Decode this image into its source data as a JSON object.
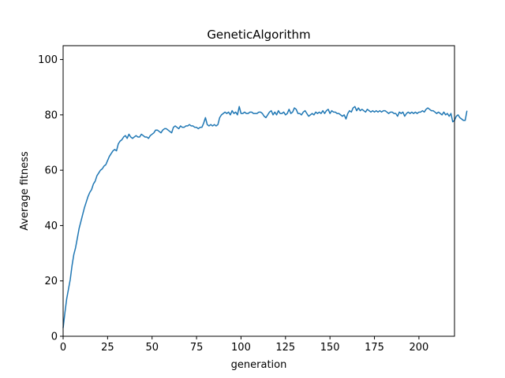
{
  "chart_data": {
    "type": "line",
    "title": "GeneticAlgorithm",
    "xlabel": "generation",
    "ylabel": "Average fitness",
    "xlim": [
      0,
      220
    ],
    "ylim": [
      0,
      105
    ],
    "xticks": [
      0,
      25,
      50,
      75,
      100,
      125,
      150,
      175,
      200
    ],
    "yticks": [
      0,
      20,
      40,
      60,
      80,
      100
    ],
    "grid": false,
    "legend": "none",
    "series": [
      {
        "color": "#1f77b4",
        "y": [
          3.0,
          8.5,
          13.5,
          17.0,
          20.5,
          25.5,
          29.5,
          32.0,
          35.5,
          39.0,
          41.5,
          44.0,
          46.5,
          48.5,
          50.5,
          52.0,
          53.0,
          55.0,
          56.0,
          58.0,
          59.0,
          60.0,
          60.5,
          61.5,
          62.0,
          63.5,
          65.0,
          66.0,
          67.0,
          67.5,
          67.0,
          69.5,
          70.5,
          71.0,
          72.0,
          72.5,
          71.5,
          73.0,
          72.0,
          71.5,
          72.0,
          72.5,
          72.0,
          72.0,
          73.0,
          72.5,
          72.0,
          72.0,
          71.5,
          72.5,
          73.0,
          73.5,
          74.5,
          74.5,
          74.0,
          73.5,
          74.5,
          75.0,
          75.0,
          74.5,
          74.0,
          73.5,
          75.5,
          76.0,
          75.5,
          75.0,
          76.0,
          75.5,
          75.5,
          76.0,
          76.0,
          76.5,
          76.0,
          76.0,
          75.5,
          75.5,
          75.0,
          75.5,
          75.5,
          77.0,
          79.0,
          76.5,
          76.0,
          76.5,
          76.0,
          76.5,
          76.0,
          76.5,
          79.0,
          80.0,
          80.5,
          81.0,
          80.5,
          81.0,
          80.0,
          81.5,
          80.5,
          81.0,
          80.0,
          83.0,
          80.5,
          80.5,
          81.0,
          80.5,
          80.5,
          81.0,
          81.0,
          80.5,
          80.5,
          80.5,
          81.0,
          81.0,
          80.5,
          79.5,
          79.0,
          80.0,
          81.0,
          81.5,
          80.0,
          81.0,
          80.0,
          81.5,
          80.5,
          80.5,
          81.0,
          80.0,
          80.5,
          82.0,
          80.5,
          81.0,
          82.5,
          82.0,
          80.5,
          80.5,
          80.0,
          81.0,
          81.5,
          80.5,
          79.5,
          80.0,
          80.5,
          80.0,
          81.0,
          80.5,
          81.0,
          80.5,
          81.5,
          80.5,
          81.5,
          82.0,
          80.5,
          81.5,
          81.0,
          81.0,
          80.5,
          80.5,
          80.0,
          79.5,
          80.0,
          78.5,
          80.5,
          81.5,
          81.0,
          82.5,
          83.0,
          81.5,
          82.5,
          81.5,
          82.0,
          81.5,
          81.0,
          82.0,
          81.5,
          81.0,
          81.5,
          81.0,
          81.5,
          81.0,
          81.5,
          81.0,
          81.5,
          81.5,
          81.0,
          80.5,
          81.0,
          81.0,
          80.5,
          80.5,
          79.5,
          81.0,
          80.5,
          81.0,
          79.5,
          80.5,
          81.0,
          80.5,
          81.0,
          80.5,
          81.0,
          80.5,
          81.0,
          81.0,
          81.5,
          81.0,
          82.0,
          82.5,
          82.0,
          81.5,
          81.5,
          81.0,
          80.5,
          81.0,
          80.5,
          80.0,
          81.0,
          80.0,
          80.5,
          79.5,
          80.5,
          77.5,
          78.0,
          79.5,
          80.0,
          79.0,
          78.5,
          78.0,
          78.0,
          81.5
        ]
      }
    ]
  }
}
